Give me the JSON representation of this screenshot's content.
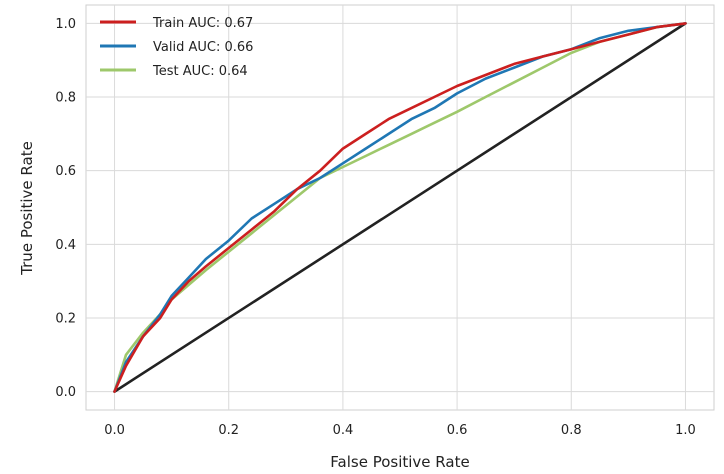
{
  "chart_data": {
    "type": "line",
    "title": "",
    "xlabel": "False Positive Rate",
    "ylabel": "True Positive Rate",
    "xlim": [
      -0.05,
      1.05
    ],
    "ylim": [
      -0.05,
      1.05
    ],
    "x_ticks": [
      0.0,
      0.2,
      0.4,
      0.6,
      0.8,
      1.0
    ],
    "y_ticks": [
      0.0,
      0.2,
      0.4,
      0.6,
      0.8,
      1.0
    ],
    "x_tick_labels": [
      "0.0",
      "0.2",
      "0.4",
      "0.6",
      "0.8",
      "1.0"
    ],
    "y_tick_labels": [
      "0.0",
      "0.2",
      "0.4",
      "0.6",
      "0.8",
      "1.0"
    ],
    "grid": true,
    "legend_position": "top-left",
    "series": [
      {
        "name": "Train AUC: 0.67",
        "color": "#cc1f1f",
        "x": [
          0.0,
          0.02,
          0.05,
          0.08,
          0.1,
          0.13,
          0.16,
          0.2,
          0.24,
          0.28,
          0.32,
          0.36,
          0.4,
          0.44,
          0.48,
          0.52,
          0.56,
          0.6,
          0.65,
          0.7,
          0.75,
          0.8,
          0.85,
          0.9,
          0.95,
          1.0
        ],
        "y": [
          0.0,
          0.07,
          0.15,
          0.2,
          0.25,
          0.3,
          0.34,
          0.39,
          0.44,
          0.49,
          0.55,
          0.6,
          0.66,
          0.7,
          0.74,
          0.77,
          0.8,
          0.83,
          0.86,
          0.89,
          0.91,
          0.93,
          0.95,
          0.97,
          0.99,
          1.0
        ]
      },
      {
        "name": "Valid AUC: 0.66",
        "color": "#1f77b4",
        "x": [
          0.0,
          0.02,
          0.05,
          0.08,
          0.1,
          0.13,
          0.16,
          0.2,
          0.24,
          0.28,
          0.32,
          0.36,
          0.4,
          0.44,
          0.48,
          0.52,
          0.56,
          0.6,
          0.65,
          0.7,
          0.75,
          0.8,
          0.85,
          0.9,
          0.95,
          1.0
        ],
        "y": [
          0.0,
          0.08,
          0.15,
          0.21,
          0.26,
          0.31,
          0.36,
          0.41,
          0.47,
          0.51,
          0.55,
          0.58,
          0.62,
          0.66,
          0.7,
          0.74,
          0.77,
          0.81,
          0.85,
          0.88,
          0.91,
          0.93,
          0.96,
          0.98,
          0.99,
          1.0
        ]
      },
      {
        "name": "Test AUC: 0.64",
        "color": "#9ec86b",
        "x": [
          0.0,
          0.02,
          0.05,
          0.08,
          0.1,
          0.13,
          0.16,
          0.2,
          0.24,
          0.28,
          0.32,
          0.36,
          0.4,
          0.44,
          0.48,
          0.52,
          0.56,
          0.6,
          0.65,
          0.7,
          0.75,
          0.8,
          0.85,
          0.9,
          0.95,
          1.0
        ],
        "y": [
          0.0,
          0.1,
          0.16,
          0.21,
          0.25,
          0.29,
          0.33,
          0.38,
          0.43,
          0.48,
          0.53,
          0.58,
          0.61,
          0.64,
          0.67,
          0.7,
          0.73,
          0.76,
          0.8,
          0.84,
          0.88,
          0.92,
          0.95,
          0.97,
          0.99,
          1.0
        ]
      },
      {
        "name": "",
        "color": "#222222",
        "x": [
          0.0,
          1.0
        ],
        "y": [
          0.0,
          1.0
        ]
      }
    ]
  }
}
